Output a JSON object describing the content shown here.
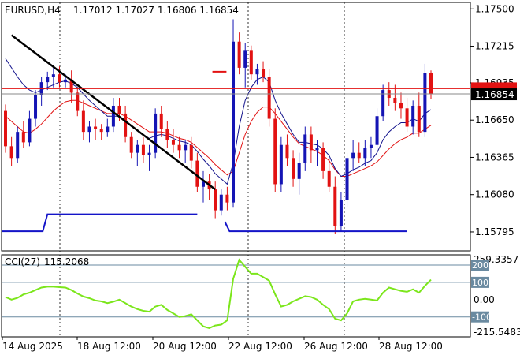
{
  "chart_data": {
    "type": "candlestick",
    "symbol": "EURUSD,H4",
    "ohlc_header": "1.17012 1.17027 1.16806 1.16854",
    "price_axis": {
      "ylim": [
        1.1565,
        1.1755
      ],
      "ticks": [
        "1.17500",
        "1.17215",
        "1.16935",
        "1.16650",
        "1.16365",
        "1.16080",
        "1.15795"
      ]
    },
    "current_price_label": "1.16854",
    "x_tick_labels": [
      "14 Aug 2025",
      "18 Aug 12:00",
      "20 Aug 12:00",
      "22 Aug 12:00",
      "26 Aug 12:00",
      "28 Aug 12:00"
    ],
    "candles": [
      [
        1.1672,
        1.1677,
        1.164,
        1.1645
      ],
      [
        1.1645,
        1.1652,
        1.163,
        1.1636
      ],
      [
        1.1636,
        1.166,
        1.1632,
        1.1656
      ],
      [
        1.1656,
        1.1664,
        1.1644,
        1.1648
      ],
      [
        1.1648,
        1.1672,
        1.1645,
        1.1666
      ],
      [
        1.1666,
        1.1688,
        1.166,
        1.1684
      ],
      [
        1.1684,
        1.1698,
        1.1676,
        1.1694
      ],
      [
        1.1694,
        1.1702,
        1.1688,
        1.1698
      ],
      [
        1.1698,
        1.1706,
        1.169,
        1.17
      ],
      [
        1.17,
        1.1706,
        1.169,
        1.1694
      ],
      [
        1.1694,
        1.17,
        1.169,
        1.1696
      ],
      [
        1.1696,
        1.1703,
        1.1678,
        1.1686
      ],
      [
        1.1686,
        1.169,
        1.1668,
        1.1672
      ],
      [
        1.1672,
        1.168,
        1.165,
        1.1656
      ],
      [
        1.1656,
        1.1664,
        1.1648,
        1.166
      ],
      [
        1.166,
        1.1666,
        1.165,
        1.1658
      ],
      [
        1.1658,
        1.1662,
        1.165,
        1.1656
      ],
      [
        1.1656,
        1.1666,
        1.1652,
        1.166
      ],
      [
        1.166,
        1.1682,
        1.1656,
        1.1676
      ],
      [
        1.1676,
        1.1682,
        1.1664,
        1.167
      ],
      [
        1.167,
        1.1676,
        1.1648,
        1.1652
      ],
      [
        1.1652,
        1.1656,
        1.1636,
        1.164
      ],
      [
        1.164,
        1.165,
        1.163,
        1.1646
      ],
      [
        1.1646,
        1.1652,
        1.1632,
        1.1638
      ],
      [
        1.1638,
        1.1646,
        1.1626,
        1.164
      ],
      [
        1.164,
        1.1674,
        1.1636,
        1.167
      ],
      [
        1.167,
        1.1676,
        1.1652,
        1.1658
      ],
      [
        1.1658,
        1.1664,
        1.1644,
        1.165
      ],
      [
        1.165,
        1.1658,
        1.164,
        1.1646
      ],
      [
        1.1646,
        1.1652,
        1.1636,
        1.1642
      ],
      [
        1.1642,
        1.165,
        1.1632,
        1.1646
      ],
      [
        1.1646,
        1.1652,
        1.1628,
        1.1634
      ],
      [
        1.1634,
        1.164,
        1.161,
        1.1614
      ],
      [
        1.1614,
        1.1626,
        1.1602,
        1.1618
      ],
      [
        1.1618,
        1.1624,
        1.1604,
        1.1612
      ],
      [
        1.1612,
        1.1618,
        1.159,
        1.1596
      ],
      [
        1.1596,
        1.1612,
        1.1592,
        1.1608
      ],
      [
        1.1608,
        1.1614,
        1.1596,
        1.1602
      ],
      [
        1.1602,
        1.1742,
        1.1598,
        1.1725
      ],
      [
        1.1725,
        1.1732,
        1.17,
        1.1705
      ],
      [
        1.1705,
        1.1724,
        1.169,
        1.1718
      ],
      [
        1.1718,
        1.1722,
        1.1696,
        1.17
      ],
      [
        1.17,
        1.1708,
        1.1692,
        1.1704
      ],
      [
        1.1704,
        1.171,
        1.1694,
        1.1698
      ],
      [
        1.1698,
        1.1704,
        1.166,
        1.1666
      ],
      [
        1.1666,
        1.1674,
        1.161,
        1.1616
      ],
      [
        1.1616,
        1.1652,
        1.161,
        1.1646
      ],
      [
        1.1646,
        1.1654,
        1.163,
        1.1636
      ],
      [
        1.1636,
        1.1642,
        1.1614,
        1.162
      ],
      [
        1.162,
        1.164,
        1.1608,
        1.1632
      ],
      [
        1.1632,
        1.166,
        1.1626,
        1.1654
      ],
      [
        1.1654,
        1.166,
        1.1632,
        1.1642
      ],
      [
        1.1642,
        1.165,
        1.163,
        1.1644
      ],
      [
        1.1644,
        1.1648,
        1.162,
        1.1626
      ],
      [
        1.1626,
        1.1636,
        1.161,
        1.1614
      ],
      [
        1.1614,
        1.1622,
        1.1578,
        1.1584
      ],
      [
        1.1584,
        1.161,
        1.158,
        1.1604
      ],
      [
        1.1604,
        1.164,
        1.1598,
        1.1636
      ],
      [
        1.1636,
        1.165,
        1.1626,
        1.164
      ],
      [
        1.164,
        1.1648,
        1.1632,
        1.1636
      ],
      [
        1.1636,
        1.165,
        1.163,
        1.1644
      ],
      [
        1.1644,
        1.1652,
        1.1636,
        1.1646
      ],
      [
        1.1646,
        1.1674,
        1.1642,
        1.1668
      ],
      [
        1.1668,
        1.1692,
        1.1664,
        1.1688
      ],
      [
        1.1688,
        1.1694,
        1.1676,
        1.1682
      ],
      [
        1.1682,
        1.1692,
        1.1672,
        1.1678
      ],
      [
        1.1678,
        1.1686,
        1.1666,
        1.1674
      ],
      [
        1.1674,
        1.1682,
        1.1656,
        1.166
      ],
      [
        1.166,
        1.168,
        1.1654,
        1.1676
      ],
      [
        1.1676,
        1.1686,
        1.1652,
        1.1656
      ],
      [
        1.1656,
        1.1708,
        1.1652,
        1.1701
      ],
      [
        1.1701,
        1.1703,
        1.1681,
        1.1685
      ]
    ],
    "ema_fast": [
      1.1712,
      1.1705,
      1.1698,
      1.1692,
      1.1688,
      1.1686,
      1.1688,
      1.169,
      1.1692,
      1.1694,
      1.1695,
      1.1693,
      1.169,
      1.1685,
      1.168,
      1.1676,
      1.1672,
      1.1668,
      1.1668,
      1.1668,
      1.1665,
      1.166,
      1.1657,
      1.1654,
      1.1651,
      1.1653,
      1.1654,
      1.1653,
      1.1651,
      1.1649,
      1.1648,
      1.1646,
      1.1641,
      1.1635,
      1.163,
      1.1624,
      1.162,
      1.1616,
      1.1632,
      1.166,
      1.168,
      1.169,
      1.1696,
      1.1698,
      1.1694,
      1.168,
      1.167,
      1.1662,
      1.1654,
      1.1648,
      1.1648,
      1.1647,
      1.1646,
      1.1643,
      1.1638,
      1.1628,
      1.1622,
      1.1624,
      1.1627,
      1.1629,
      1.1632,
      1.1634,
      1.164,
      1.165,
      1.1656,
      1.166,
      1.1663,
      1.1663,
      1.1666,
      1.1664,
      1.167,
      1.1673
    ],
    "ema_slow": [
      1.1668,
      1.1664,
      1.166,
      1.1656,
      1.1655,
      1.1658,
      1.1662,
      1.1667,
      1.1672,
      1.1676,
      1.1679,
      1.168,
      1.168,
      1.1678,
      1.1676,
      1.1674,
      1.1672,
      1.167,
      1.167,
      1.167,
      1.1668,
      1.1665,
      1.1662,
      1.1659,
      1.1656,
      1.1656,
      1.1656,
      1.1655,
      1.1653,
      1.1651,
      1.165,
      1.1648,
      1.1644,
      1.164,
      1.1636,
      1.1631,
      1.1627,
      1.1623,
      1.1626,
      1.164,
      1.1654,
      1.1664,
      1.1671,
      1.1675,
      1.1675,
      1.167,
      1.1664,
      1.1658,
      1.1652,
      1.1647,
      1.1645,
      1.1643,
      1.1641,
      1.1638,
      1.1634,
      1.1627,
      1.1622,
      1.1622,
      1.1624,
      1.1626,
      1.1628,
      1.163,
      1.1633,
      1.1638,
      1.1643,
      1.1647,
      1.165,
      1.1652,
      1.1655,
      1.1655,
      1.1658,
      1.1661
    ],
    "trendline": [
      [
        1,
        1.173
      ],
      [
        35,
        1.1612
      ]
    ],
    "support_levels": [
      {
        "from": 0,
        "to": 7,
        "value": 1.158
      },
      {
        "from": 7,
        "to": 32,
        "value": 1.1593
      },
      {
        "from": 37,
        "to": 67,
        "value": 1.158
      }
    ],
    "resistance_marker": {
      "from": 34,
      "to": 37,
      "value": 1.1702
    },
    "price_line": 1.1689,
    "indicator": {
      "name": "CCI(27)",
      "value_label": "115.2068",
      "ylim": [
        -215.5483,
        259.3357
      ],
      "ticks": [
        "259.3357",
        "200",
        "100",
        "0.00",
        "-100",
        "-215.5483"
      ],
      "levels": [
        200,
        100,
        -100
      ],
      "values": [
        15,
        0,
        10,
        30,
        40,
        55,
        70,
        75,
        75,
        72,
        70,
        55,
        35,
        18,
        8,
        -5,
        -10,
        -20,
        -12,
        0,
        -20,
        -40,
        -55,
        -65,
        -70,
        -40,
        -30,
        -60,
        -80,
        -100,
        -95,
        -85,
        -120,
        -155,
        -165,
        -150,
        -145,
        -120,
        120,
        230,
        190,
        150,
        150,
        130,
        110,
        30,
        -40,
        -30,
        -10,
        5,
        20,
        15,
        0,
        -30,
        -55,
        -110,
        -120,
        -80,
        -10,
        0,
        5,
        0,
        -5,
        40,
        70,
        60,
        50,
        45,
        60,
        40,
        80,
        115
      ]
    },
    "colors": {
      "up": "#1414b4",
      "down": "#e21212",
      "ema_fast": "#12128c",
      "ema_slow": "#e21212",
      "trendline": "#000000",
      "support": "#1414c8",
      "cci": "#7ce61c",
      "grid": "#6a8aa0",
      "price_label_bg": "#000000"
    }
  }
}
